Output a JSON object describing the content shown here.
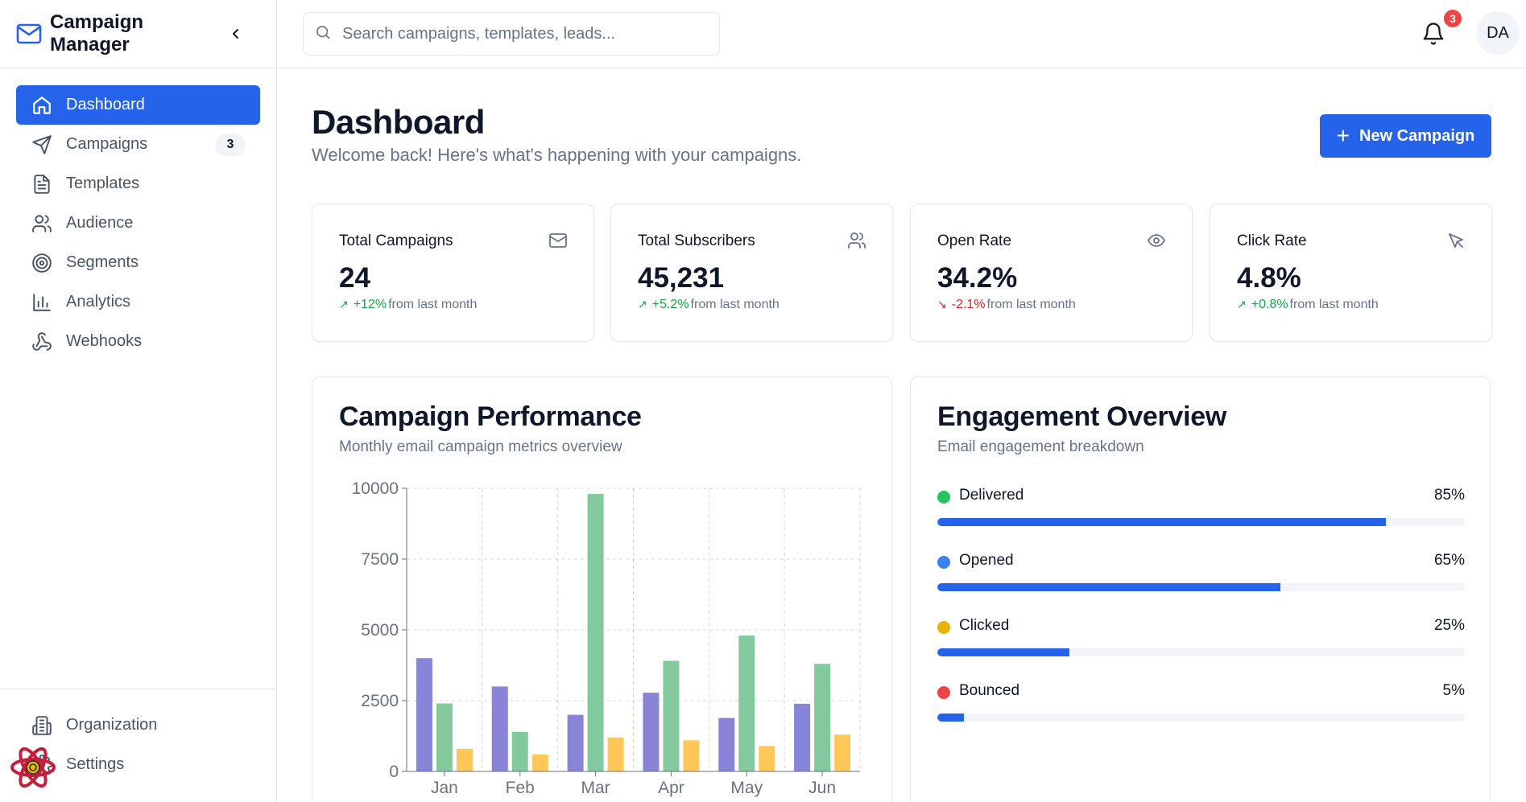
{
  "app": {
    "title": "Campaign Manager"
  },
  "sidebar": {
    "items": [
      {
        "label": "Dashboard",
        "icon": "home-icon",
        "active": true
      },
      {
        "label": "Campaigns",
        "icon": "send-icon",
        "badge": "3"
      },
      {
        "label": "Templates",
        "icon": "file-text-icon"
      },
      {
        "label": "Audience",
        "icon": "users-icon"
      },
      {
        "label": "Segments",
        "icon": "target-icon"
      },
      {
        "label": "Analytics",
        "icon": "bar-chart-icon"
      },
      {
        "label": "Webhooks",
        "icon": "webhook-icon"
      }
    ],
    "bottom_items": [
      {
        "label": "Organization",
        "icon": "building-icon"
      },
      {
        "label": "Settings",
        "icon": "settings-icon"
      }
    ]
  },
  "header": {
    "search_placeholder": "Search campaigns, templates, leads...",
    "notification_count": "3",
    "avatar_initials": "DA"
  },
  "page": {
    "title": "Dashboard",
    "subtitle": "Welcome back! Here's what's happening with your campaigns.",
    "new_button_label": "New Campaign"
  },
  "stats": [
    {
      "label": "Total Campaigns",
      "value": "24",
      "delta": "+12%",
      "trend": "up",
      "suffix": "from last month",
      "icon": "mail-icon"
    },
    {
      "label": "Total Subscribers",
      "value": "45,231",
      "delta": "+5.2%",
      "trend": "up",
      "suffix": "from last month",
      "icon": "users-icon"
    },
    {
      "label": "Open Rate",
      "value": "34.2%",
      "delta": "-2.1%",
      "trend": "down",
      "suffix": "from last month",
      "icon": "eye-icon"
    },
    {
      "label": "Click Rate",
      "value": "4.8%",
      "delta": "+0.8%",
      "trend": "up",
      "suffix": "from last month",
      "icon": "cursor-icon"
    }
  ],
  "performance": {
    "title": "Campaign Performance",
    "subtitle": "Monthly email campaign metrics overview"
  },
  "chart_data": {
    "type": "bar",
    "title": "",
    "xlabel": "",
    "ylabel": "",
    "categories": [
      "Jan",
      "Feb",
      "Mar",
      "Apr",
      "May",
      "Jun"
    ],
    "ylim": [
      0,
      10000
    ],
    "yticks": [
      "0",
      "2500",
      "5000",
      "7500",
      "10000"
    ],
    "grid": true,
    "series": [
      {
        "color": "#8884d8",
        "values": [
          4000,
          3000,
          2000,
          2780,
          1890,
          2390
        ]
      },
      {
        "color": "#82ca9d",
        "values": [
          2400,
          1398,
          9800,
          3908,
          4800,
          3800
        ]
      },
      {
        "color": "#ffc658",
        "values": [
          800,
          600,
          1200,
          1100,
          900,
          1300
        ]
      }
    ]
  },
  "engagement": {
    "title": "Engagement Overview",
    "subtitle": "Email engagement breakdown",
    "items": [
      {
        "label": "Delivered",
        "percent_label": "85%",
        "value": 85,
        "dot_color": "#22c55e"
      },
      {
        "label": "Opened",
        "percent_label": "65%",
        "value": 65,
        "dot_color": "#3b82f6"
      },
      {
        "label": "Clicked",
        "percent_label": "25%",
        "value": 25,
        "dot_color": "#eab308"
      },
      {
        "label": "Bounced",
        "percent_label": "5%",
        "value": 5,
        "dot_color": "#ef4444"
      }
    ],
    "bar_color": "#2563eb"
  }
}
